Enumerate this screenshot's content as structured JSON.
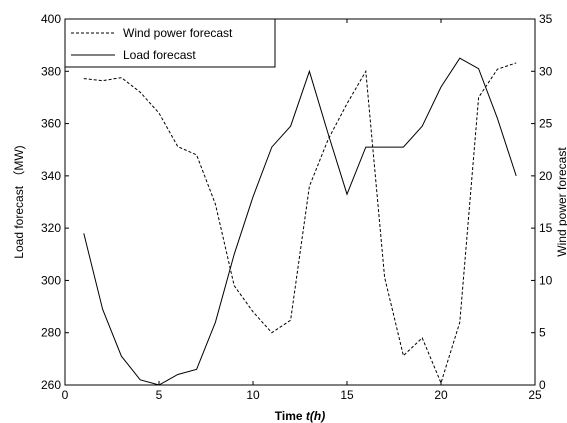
{
  "chart_data": {
    "type": "line",
    "xlabel_prefix": "Time ",
    "xlabel_unit": "t(h)",
    "ylabel_left": "Load forecast （MW)",
    "ylabel_right": "Wind power forecast",
    "xlim": [
      0,
      25
    ],
    "ylim_left": [
      260,
      400
    ],
    "ylim_right": [
      0,
      35
    ],
    "x_ticks": [
      0,
      5,
      10,
      15,
      20,
      25
    ],
    "y_left_ticks": [
      260,
      280,
      300,
      320,
      340,
      360,
      380,
      400
    ],
    "y_right_ticks": [
      0,
      5,
      10,
      15,
      20,
      25,
      30,
      35
    ],
    "grid": false,
    "legend_position": "top-left",
    "x": [
      1,
      2,
      3,
      4,
      5,
      6,
      7,
      8,
      9,
      10,
      11,
      12,
      13,
      14,
      15,
      16,
      17,
      18,
      19,
      20,
      21,
      22,
      23,
      24
    ],
    "series": [
      {
        "name": "Wind power forecast",
        "axis": "right",
        "style": "dashed",
        "values": [
          29.3,
          29.1,
          29.4,
          28.0,
          26.0,
          22.8,
          22.0,
          17.3,
          9.5,
          7.0,
          5.0,
          6.2,
          19.0,
          23.5,
          26.9,
          30.0,
          10.3,
          2.8,
          4.5,
          0.2,
          6.0,
          27.5,
          30.2,
          30.8
        ]
      },
      {
        "name": "Load forecast",
        "axis": "left",
        "style": "solid",
        "values": [
          318,
          289,
          271,
          262,
          260,
          264,
          266,
          284,
          310,
          332,
          351,
          359,
          380,
          356,
          333,
          351,
          351,
          351,
          359,
          374,
          385,
          381,
          362,
          340
        ]
      }
    ]
  }
}
